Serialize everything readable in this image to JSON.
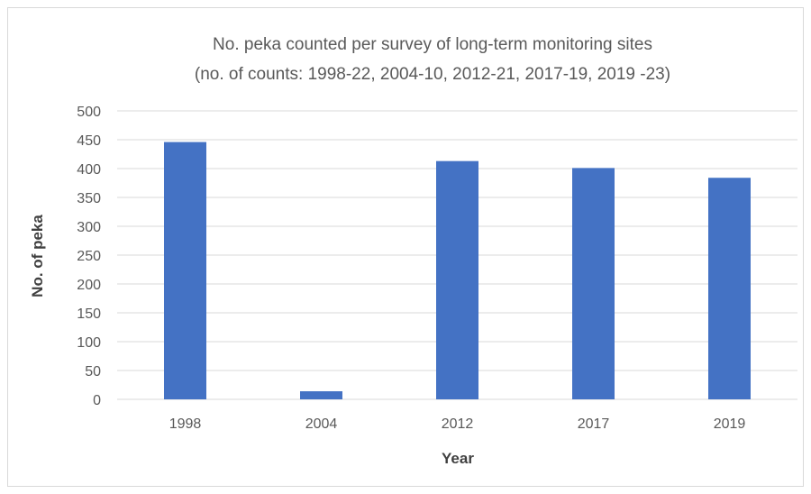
{
  "chart_data": {
    "type": "bar",
    "title": "No. peka counted per survey of long-term monitoring sites",
    "subtitle": "(no. of counts: 1998-22, 2004-10, 2012-21, 2017-19, 2019 -23)",
    "xlabel": "Year",
    "ylabel": "No. of peka",
    "categories": [
      "1998",
      "2004",
      "2012",
      "2017",
      "2019"
    ],
    "values": [
      446,
      14,
      413,
      401,
      384
    ],
    "ylim": [
      0,
      500
    ],
    "yticks": [
      "0",
      "50",
      "100",
      "150",
      "200",
      "250",
      "300",
      "350",
      "400",
      "450",
      "500"
    ],
    "grid": true,
    "legend": "none",
    "bar_color": "#4472c4"
  }
}
